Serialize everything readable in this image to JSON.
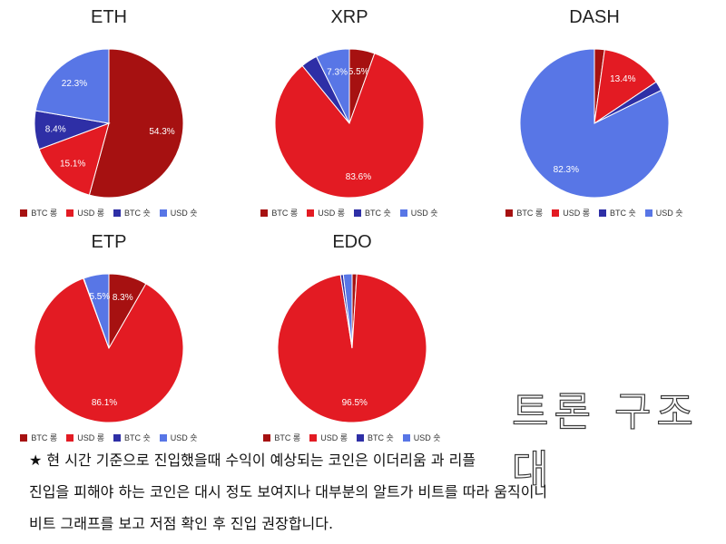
{
  "colors": {
    "btc_long": "#a61111",
    "usd_long": "#e31b23",
    "btc_short": "#2e2fa6",
    "usd_short": "#5876e6"
  },
  "chart_data": [
    {
      "type": "pie",
      "title": "ETH",
      "labels": [
        "BTC 롱",
        "USD 롱",
        "BTC 숏",
        "USD 숏"
      ],
      "values": [
        54.3,
        15.1,
        8.4,
        22.3
      ],
      "colors": [
        "#a61111",
        "#e31b23",
        "#2e2fa6",
        "#5876e6"
      ],
      "legend": "bottom"
    },
    {
      "type": "pie",
      "title": "XRP",
      "labels": [
        "BTC 롱",
        "USD 롱",
        "BTC 숏",
        "USD 숏"
      ],
      "values": [
        5.5,
        83.6,
        3.6,
        7.3
      ],
      "colors": [
        "#a61111",
        "#e31b23",
        "#2e2fa6",
        "#5876e6"
      ],
      "legend": "bottom"
    },
    {
      "type": "pie",
      "title": "DASH",
      "labels": [
        "BTC 롱",
        "USD 롱",
        "BTC 숏",
        "USD 숏"
      ],
      "values": [
        2.2,
        13.4,
        2.1,
        82.3
      ],
      "colors": [
        "#a61111",
        "#e31b23",
        "#2e2fa6",
        "#5876e6"
      ],
      "legend": "bottom"
    },
    {
      "type": "pie",
      "title": "ETP",
      "labels": [
        "BTC 롱",
        "USD 롱",
        "BTC 숏",
        "USD 숏"
      ],
      "values": [
        8.3,
        86.1,
        0.1,
        5.5
      ],
      "colors": [
        "#a61111",
        "#e31b23",
        "#2e2fa6",
        "#5876e6"
      ],
      "legend": "bottom"
    },
    {
      "type": "pie",
      "title": "EDO",
      "labels": [
        "BTC 롱",
        "USD 롱",
        "BTC 숏",
        "USD 숏"
      ],
      "values": [
        1.0,
        96.5,
        0.6,
        1.9
      ],
      "colors": [
        "#a61111",
        "#e31b23",
        "#2e2fa6",
        "#5876e6"
      ],
      "legend": "bottom"
    }
  ],
  "watermark": "트론 구조대",
  "notes": [
    "★ 현 시간 기준으로 진입했을때 수익이 예상되는 코인은 이더리움 과 리플",
    "진입을 피해야 하는 코인은 대시 정도 보여지나 대부분의 알트가 비트를 따라 움직이니",
    "비트 그래프를 보고 저점 확인 후 진입 권장합니다."
  ]
}
